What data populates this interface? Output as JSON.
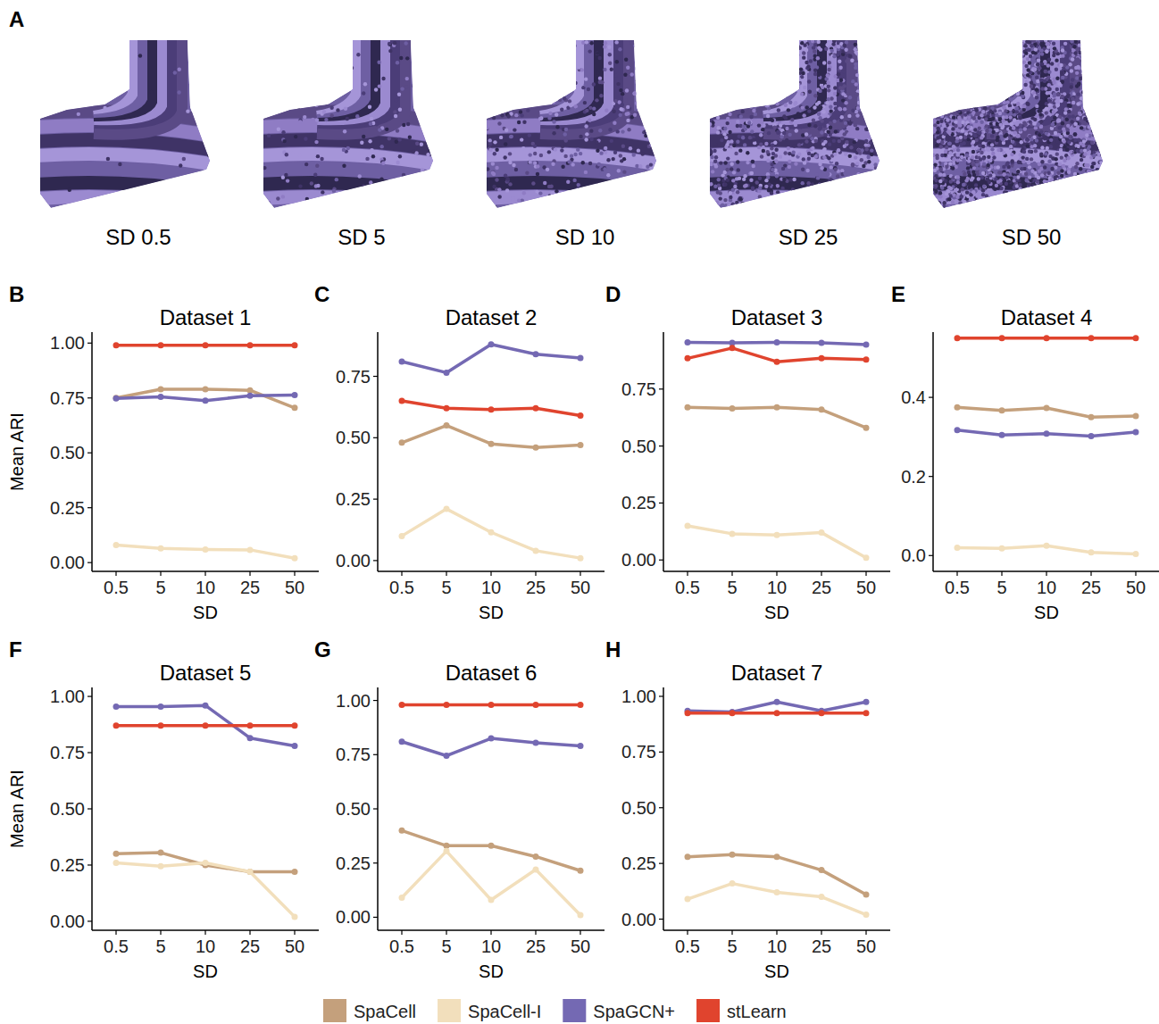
{
  "panel_a": {
    "letter": "A",
    "images": [
      {
        "label": "SD 0.5",
        "sd": 0.5
      },
      {
        "label": "SD 5",
        "sd": 5
      },
      {
        "label": "SD 10",
        "sd": 10
      },
      {
        "label": "SD 25",
        "sd": 25
      },
      {
        "label": "SD 50",
        "sd": 50
      }
    ]
  },
  "chart_data": [
    {
      "type": "line",
      "letter": "B",
      "title": "Dataset 1",
      "x_label": "SD",
      "y_label": "Mean ARI",
      "marker": "circle",
      "legend": "bottom",
      "categories": [
        "0.5",
        "5",
        "10",
        "25",
        "50"
      ],
      "ylim": [
        -0.04,
        1.05
      ],
      "yticks": [
        {
          "value": 0,
          "label": "0.00"
        },
        {
          "value": 0.25,
          "label": "0.25"
        },
        {
          "value": 0.5,
          "label": "0.50"
        },
        {
          "value": 0.75,
          "label": "0.75"
        },
        {
          "value": 1,
          "label": "1.00"
        }
      ],
      "series": [
        {
          "name": "SpaCell",
          "color": "#c4a07c",
          "values": [
            0.75,
            0.79,
            0.79,
            0.785,
            0.705
          ]
        },
        {
          "name": "SpaCell-I",
          "color": "#f2dfbc",
          "values": [
            0.08,
            0.065,
            0.06,
            0.058,
            0.02
          ]
        },
        {
          "name": "SpaGCN+",
          "color": "#7469b3",
          "values": [
            0.748,
            0.755,
            0.738,
            0.76,
            0.763
          ]
        },
        {
          "name": "stLearn",
          "color": "#e0442e",
          "values": [
            0.99,
            0.99,
            0.99,
            0.99,
            0.99
          ]
        }
      ]
    },
    {
      "type": "line",
      "letter": "C",
      "title": "Dataset 2",
      "x_label": "SD",
      "marker": "circle",
      "categories": [
        "0.5",
        "5",
        "10",
        "25",
        "50"
      ],
      "ylim": [
        -0.044,
        0.93
      ],
      "yticks": [
        {
          "value": 0,
          "label": "0.00"
        },
        {
          "value": 0.25,
          "label": "0.25"
        },
        {
          "value": 0.5,
          "label": "0.50"
        },
        {
          "value": 0.75,
          "label": "0.75"
        }
      ],
      "series": [
        {
          "name": "SpaCell",
          "color": "#c4a07c",
          "values": [
            0.48,
            0.55,
            0.475,
            0.46,
            0.47
          ]
        },
        {
          "name": "SpaCell-I",
          "color": "#f2dfbc",
          "values": [
            0.1,
            0.21,
            0.115,
            0.04,
            0.01
          ]
        },
        {
          "name": "SpaGCN+",
          "color": "#7469b3",
          "values": [
            0.81,
            0.765,
            0.88,
            0.84,
            0.825
          ]
        },
        {
          "name": "stLearn",
          "color": "#e0442e",
          "values": [
            0.65,
            0.62,
            0.615,
            0.62,
            0.59
          ]
        }
      ]
    },
    {
      "type": "line",
      "letter": "D",
      "title": "Dataset 3",
      "x_label": "SD",
      "marker": "circle",
      "categories": [
        "0.5",
        "5",
        "10",
        "25",
        "50"
      ],
      "ylim": [
        -0.05,
        1.0
      ],
      "yticks": [
        {
          "value": 0,
          "label": "0.00"
        },
        {
          "value": 0.25,
          "label": "0.25"
        },
        {
          "value": 0.5,
          "label": "0.50"
        },
        {
          "value": 0.75,
          "label": "0.75"
        }
      ],
      "series": [
        {
          "name": "SpaCell",
          "color": "#c4a07c",
          "values": [
            0.67,
            0.665,
            0.67,
            0.66,
            0.58
          ]
        },
        {
          "name": "SpaCell-I",
          "color": "#f2dfbc",
          "values": [
            0.15,
            0.115,
            0.11,
            0.12,
            0.01
          ]
        },
        {
          "name": "SpaGCN+",
          "color": "#7469b3",
          "values": [
            0.955,
            0.953,
            0.955,
            0.953,
            0.945
          ]
        },
        {
          "name": "stLearn",
          "color": "#e0442e",
          "values": [
            0.885,
            0.93,
            0.87,
            0.885,
            0.88
          ]
        }
      ]
    },
    {
      "type": "line",
      "letter": "E",
      "title": "Dataset 4",
      "x_label": "SD",
      "marker": "circle",
      "categories": [
        "0.5",
        "5",
        "10",
        "25",
        "50"
      ],
      "ylim": [
        -0.04,
        0.565
      ],
      "yticks": [
        {
          "value": 0,
          "label": "0.0"
        },
        {
          "value": 0.2,
          "label": "0.2"
        },
        {
          "value": 0.4,
          "label": "0.4"
        }
      ],
      "series": [
        {
          "name": "SpaCell",
          "color": "#c4a07c",
          "values": [
            0.375,
            0.367,
            0.373,
            0.35,
            0.353
          ]
        },
        {
          "name": "SpaCell-I",
          "color": "#f2dfbc",
          "values": [
            0.02,
            0.018,
            0.025,
            0.008,
            0.004
          ]
        },
        {
          "name": "SpaGCN+",
          "color": "#7469b3",
          "values": [
            0.317,
            0.305,
            0.308,
            0.302,
            0.312
          ]
        },
        {
          "name": "stLearn",
          "color": "#e0442e",
          "values": [
            0.55,
            0.55,
            0.55,
            0.55,
            0.55
          ]
        }
      ]
    },
    {
      "type": "line",
      "letter": "F",
      "title": "Dataset 5",
      "x_label": "SD",
      "y_label": "Mean ARI",
      "marker": "circle",
      "categories": [
        "0.5",
        "5",
        "10",
        "25",
        "50"
      ],
      "ylim": [
        -0.04,
        1.04
      ],
      "yticks": [
        {
          "value": 0,
          "label": "0.00"
        },
        {
          "value": 0.25,
          "label": "0.25"
        },
        {
          "value": 0.5,
          "label": "0.50"
        },
        {
          "value": 0.75,
          "label": "0.75"
        },
        {
          "value": 1,
          "label": "1.00"
        }
      ],
      "series": [
        {
          "name": "SpaCell",
          "color": "#c4a07c",
          "values": [
            0.3,
            0.305,
            0.25,
            0.22,
            0.22
          ]
        },
        {
          "name": "SpaCell-I",
          "color": "#f2dfbc",
          "values": [
            0.26,
            0.245,
            0.26,
            0.22,
            0.02
          ]
        },
        {
          "name": "SpaGCN+",
          "color": "#7469b3",
          "values": [
            0.955,
            0.955,
            0.96,
            0.815,
            0.78
          ]
        },
        {
          "name": "stLearn",
          "color": "#e0442e",
          "values": [
            0.87,
            0.87,
            0.87,
            0.87,
            0.87
          ]
        }
      ]
    },
    {
      "type": "line",
      "letter": "G",
      "title": "Dataset 6",
      "x_label": "SD",
      "marker": "circle",
      "categories": [
        "0.5",
        "5",
        "10",
        "25",
        "50"
      ],
      "ylim": [
        -0.06,
        1.06
      ],
      "yticks": [
        {
          "value": 0,
          "label": "0.00"
        },
        {
          "value": 0.25,
          "label": "0.25"
        },
        {
          "value": 0.5,
          "label": "0.50"
        },
        {
          "value": 0.75,
          "label": "0.75"
        },
        {
          "value": 1,
          "label": "1.00"
        }
      ],
      "series": [
        {
          "name": "SpaCell",
          "color": "#c4a07c",
          "values": [
            0.4,
            0.33,
            0.33,
            0.28,
            0.215
          ]
        },
        {
          "name": "SpaCell-I",
          "color": "#f2dfbc",
          "values": [
            0.09,
            0.305,
            0.08,
            0.22,
            0.01
          ]
        },
        {
          "name": "SpaGCN+",
          "color": "#7469b3",
          "values": [
            0.81,
            0.745,
            0.825,
            0.805,
            0.79
          ]
        },
        {
          "name": "stLearn",
          "color": "#e0442e",
          "values": [
            0.98,
            0.98,
            0.98,
            0.98,
            0.98
          ]
        }
      ]
    },
    {
      "type": "line",
      "letter": "H",
      "title": "Dataset 7",
      "x_label": "SD",
      "marker": "circle",
      "categories": [
        "0.5",
        "5",
        "10",
        "25",
        "50"
      ],
      "ylim": [
        -0.05,
        1.04
      ],
      "yticks": [
        {
          "value": 0,
          "label": "0.00"
        },
        {
          "value": 0.25,
          "label": "0.25"
        },
        {
          "value": 0.5,
          "label": "0.50"
        },
        {
          "value": 0.75,
          "label": "0.75"
        },
        {
          "value": 1,
          "label": "1.00"
        }
      ],
      "series": [
        {
          "name": "SpaCell",
          "color": "#c4a07c",
          "values": [
            0.28,
            0.29,
            0.28,
            0.22,
            0.11
          ]
        },
        {
          "name": "SpaCell-I",
          "color": "#f2dfbc",
          "values": [
            0.09,
            0.16,
            0.12,
            0.1,
            0.02
          ]
        },
        {
          "name": "SpaGCN+",
          "color": "#7469b3",
          "values": [
            0.935,
            0.93,
            0.975,
            0.935,
            0.975
          ]
        },
        {
          "name": "stLearn",
          "color": "#e0442e",
          "values": [
            0.925,
            0.925,
            0.925,
            0.925,
            0.925
          ]
        }
      ]
    }
  ]
}
